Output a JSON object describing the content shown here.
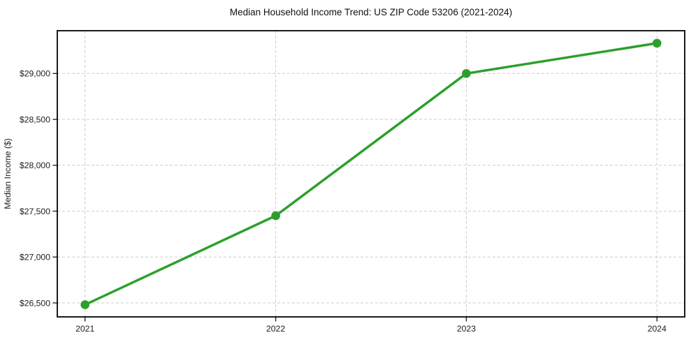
{
  "page": {
    "background": "#ffffff"
  },
  "chart_data": {
    "type": "line",
    "title": "Median Household Income Trend: US ZIP Code 53206 (2021-2024)",
    "xlabel": "",
    "ylabel": "Median Income ($)",
    "categories": [
      "2021",
      "2022",
      "2023",
      "2024"
    ],
    "series": [
      {
        "name": "Median Income",
        "values": [
          26480,
          27450,
          29000,
          29330
        ],
        "color": "#2ca02c",
        "marker": "circle",
        "line_width": 3.5,
        "marker_radius": 6.3
      }
    ],
    "yticks": [
      26500,
      27000,
      27500,
      28000,
      28500,
      29000
    ],
    "ytick_labels": [
      "$26,500",
      "$27,000",
      "$27,500",
      "$28,000",
      "$28,500",
      "$29,000"
    ],
    "ylim": [
      26348,
      29466
    ],
    "grid": true,
    "grid_style": "dashed",
    "grid_color": "#cccccc",
    "axis_color": "#000000",
    "tick_color": "#222222",
    "legend": "none"
  }
}
